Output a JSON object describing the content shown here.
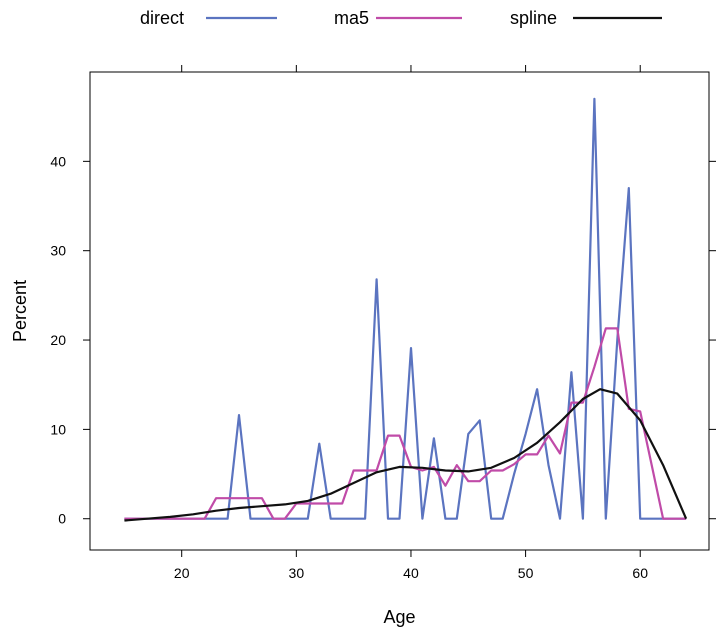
{
  "chart_data": {
    "type": "line",
    "xlabel": "Age",
    "ylabel": "Percent",
    "xlim": [
      12,
      66
    ],
    "ylim": [
      -3.5,
      50
    ],
    "xticks": [
      20,
      30,
      40,
      50,
      60
    ],
    "yticks": [
      0,
      10,
      20,
      30,
      40
    ],
    "legend_position": "top",
    "grid": false,
    "series": [
      {
        "name": "direct",
        "color": "#5b74c0",
        "points": [
          [
            15,
            0
          ],
          [
            16,
            0
          ],
          [
            17,
            0
          ],
          [
            18,
            0
          ],
          [
            19,
            0
          ],
          [
            20,
            0
          ],
          [
            21,
            0
          ],
          [
            22,
            0
          ],
          [
            23,
            0
          ],
          [
            24,
            0
          ],
          [
            25,
            11.6
          ],
          [
            26,
            0
          ],
          [
            27,
            0
          ],
          [
            28,
            0
          ],
          [
            29,
            0
          ],
          [
            30,
            0
          ],
          [
            31,
            0
          ],
          [
            32,
            8.4
          ],
          [
            33,
            0
          ],
          [
            34,
            0
          ],
          [
            35,
            0
          ],
          [
            36,
            0
          ],
          [
            37,
            26.8
          ],
          [
            38,
            0
          ],
          [
            39,
            0
          ],
          [
            40,
            19.1
          ],
          [
            41,
            0
          ],
          [
            42,
            9
          ],
          [
            43,
            0
          ],
          [
            44,
            0
          ],
          [
            45,
            9.5
          ],
          [
            46,
            11
          ],
          [
            47,
            0
          ],
          [
            48,
            0
          ],
          [
            49,
            5
          ],
          [
            50,
            9.5
          ],
          [
            51,
            14.5
          ],
          [
            52,
            6
          ],
          [
            53,
            0
          ],
          [
            54,
            16.4
          ],
          [
            55,
            0
          ],
          [
            56,
            47
          ],
          [
            57,
            0
          ],
          [
            58,
            20
          ],
          [
            59,
            37
          ],
          [
            60,
            0
          ],
          [
            61,
            0
          ],
          [
            62,
            0
          ],
          [
            63,
            0
          ],
          [
            64,
            0
          ]
        ]
      },
      {
        "name": "ma5",
        "color": "#c04ba8",
        "points": [
          [
            15,
            0
          ],
          [
            16,
            0
          ],
          [
            17,
            0
          ],
          [
            18,
            0
          ],
          [
            19,
            0
          ],
          [
            20,
            0
          ],
          [
            21,
            0
          ],
          [
            22,
            0
          ],
          [
            23,
            2.3
          ],
          [
            24,
            2.3
          ],
          [
            25,
            2.3
          ],
          [
            26,
            2.3
          ],
          [
            27,
            2.3
          ],
          [
            28,
            0
          ],
          [
            29,
            0
          ],
          [
            30,
            1.7
          ],
          [
            31,
            1.7
          ],
          [
            32,
            1.7
          ],
          [
            33,
            1.7
          ],
          [
            34,
            1.7
          ],
          [
            35,
            5.4
          ],
          [
            36,
            5.4
          ],
          [
            37,
            5.4
          ],
          [
            38,
            9.3
          ],
          [
            39,
            9.3
          ],
          [
            40,
            5.8
          ],
          [
            41,
            5.4
          ],
          [
            42,
            5.8
          ],
          [
            43,
            3.7
          ],
          [
            44,
            6
          ],
          [
            45,
            4.2
          ],
          [
            46,
            4.2
          ],
          [
            47,
            5.4
          ],
          [
            48,
            5.4
          ],
          [
            49,
            6.1
          ],
          [
            50,
            7.2
          ],
          [
            51,
            7.2
          ],
          [
            52,
            9.3
          ],
          [
            53,
            7.3
          ],
          [
            54,
            13
          ],
          [
            55,
            13
          ],
          [
            56,
            17
          ],
          [
            57,
            21.3
          ],
          [
            58,
            21.3
          ],
          [
            59,
            12.3
          ],
          [
            60,
            12
          ],
          [
            61,
            6
          ],
          [
            62,
            0
          ],
          [
            63,
            0
          ],
          [
            64,
            0
          ]
        ]
      },
      {
        "name": "spline",
        "color": "#111111",
        "points": [
          [
            15,
            -0.2
          ],
          [
            17,
            0
          ],
          [
            19,
            0.2
          ],
          [
            21,
            0.5
          ],
          [
            23,
            0.9
          ],
          [
            25,
            1.2
          ],
          [
            27,
            1.4
          ],
          [
            29,
            1.6
          ],
          [
            31,
            2.0
          ],
          [
            33,
            2.8
          ],
          [
            35,
            4.0
          ],
          [
            37,
            5.2
          ],
          [
            39,
            5.8
          ],
          [
            41,
            5.7
          ],
          [
            43,
            5.4
          ],
          [
            45,
            5.3
          ],
          [
            47,
            5.7
          ],
          [
            49,
            6.8
          ],
          [
            51,
            8.5
          ],
          [
            53,
            10.8
          ],
          [
            55,
            13.4
          ],
          [
            56.5,
            14.5
          ],
          [
            58,
            14.0
          ],
          [
            60,
            11.0
          ],
          [
            62,
            6.0
          ],
          [
            64,
            0
          ]
        ]
      }
    ]
  }
}
